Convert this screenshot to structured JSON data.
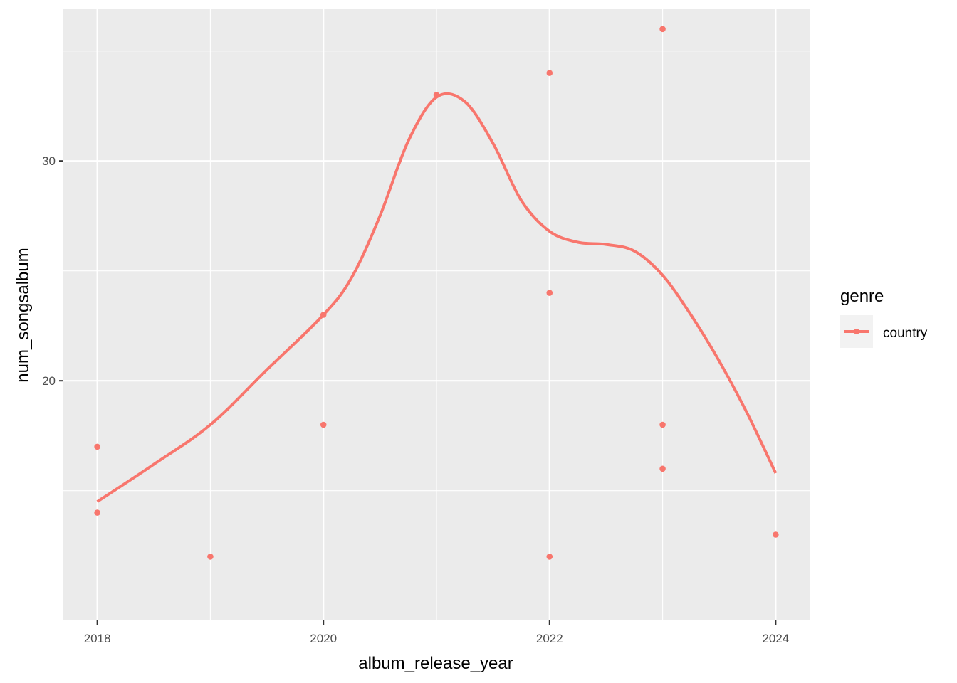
{
  "chart_data": {
    "type": "scatter",
    "xlabel": "album_release_year",
    "ylabel": "num_songsalbum",
    "xlim": [
      2017.7,
      2024.3
    ],
    "ylim": [
      9.1,
      36.9
    ],
    "x_ticks": [
      2018,
      2020,
      2022,
      2024
    ],
    "x_tick_labels": [
      "2018",
      "2020",
      "2022",
      "2024"
    ],
    "x_minor_ticks": [
      2019,
      2021,
      2023
    ],
    "y_ticks": [
      20,
      30
    ],
    "y_tick_labels": [
      "20",
      "30"
    ],
    "y_minor_ticks": [
      15,
      25,
      35
    ],
    "grid": true,
    "legend": {
      "title": "genre",
      "position": "right",
      "entries": [
        "country"
      ]
    },
    "series": [
      {
        "name": "country",
        "color": "#F8766D",
        "points": [
          {
            "x": 2018,
            "y": 17
          },
          {
            "x": 2018,
            "y": 14
          },
          {
            "x": 2019,
            "y": 12
          },
          {
            "x": 2020,
            "y": 23
          },
          {
            "x": 2020,
            "y": 18
          },
          {
            "x": 2021,
            "y": 33
          },
          {
            "x": 2022,
            "y": 34
          },
          {
            "x": 2022,
            "y": 24
          },
          {
            "x": 2022,
            "y": 12
          },
          {
            "x": 2023,
            "y": 36
          },
          {
            "x": 2023,
            "y": 18
          },
          {
            "x": 2023,
            "y": 16
          },
          {
            "x": 2024,
            "y": 13
          }
        ],
        "smooth": {
          "x": [
            2018,
            2018.5,
            2019,
            2019.5,
            2020,
            2020.25,
            2020.5,
            2020.75,
            2021,
            2021.25,
            2021.5,
            2021.75,
            2022,
            2022.25,
            2022.5,
            2022.75,
            2023,
            2023.25,
            2023.5,
            2023.75,
            2024
          ],
          "y": [
            14.5,
            16.2,
            18.0,
            20.5,
            23.0,
            24.7,
            27.5,
            30.9,
            32.9,
            32.7,
            30.8,
            28.2,
            26.8,
            26.3,
            26.2,
            25.9,
            24.8,
            23.0,
            20.9,
            18.5,
            15.8
          ]
        }
      }
    ]
  }
}
